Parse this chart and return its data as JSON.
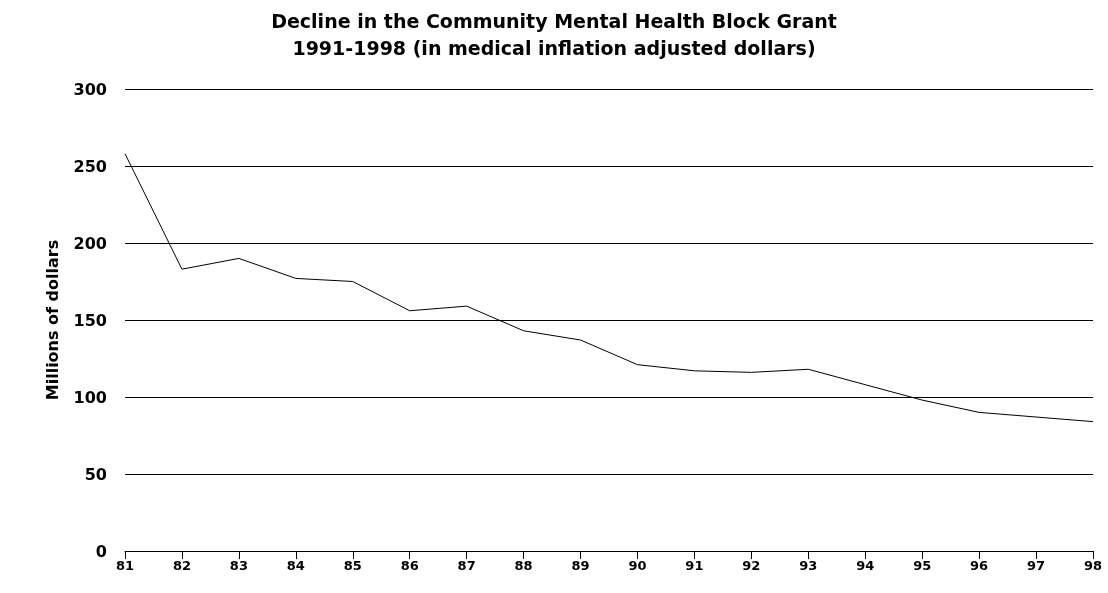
{
  "chart_data": {
    "type": "line",
    "title": "Decline in the Community Mental Health Block Grant",
    "subtitle": "1991-1998 (in medical inflation adjusted dollars)",
    "ylabel": "Millions of dollars",
    "categories": [
      "81",
      "82",
      "83",
      "84",
      "85",
      "86",
      "87",
      "88",
      "89",
      "90",
      "91",
      "92",
      "93",
      "94",
      "95",
      "96",
      "97",
      "98"
    ],
    "series": [
      {
        "color": "#000000",
        "values": [
          258,
          183,
          190,
          177,
          175,
          156,
          159,
          143,
          137,
          121,
          117,
          116,
          118,
          108,
          98,
          90,
          87,
          84
        ]
      }
    ],
    "ylim": [
      0,
      300
    ],
    "yticks": [
      0,
      50,
      100,
      150,
      200,
      250,
      300
    ],
    "grid": "y",
    "marker": "none",
    "line_style": "solid"
  }
}
